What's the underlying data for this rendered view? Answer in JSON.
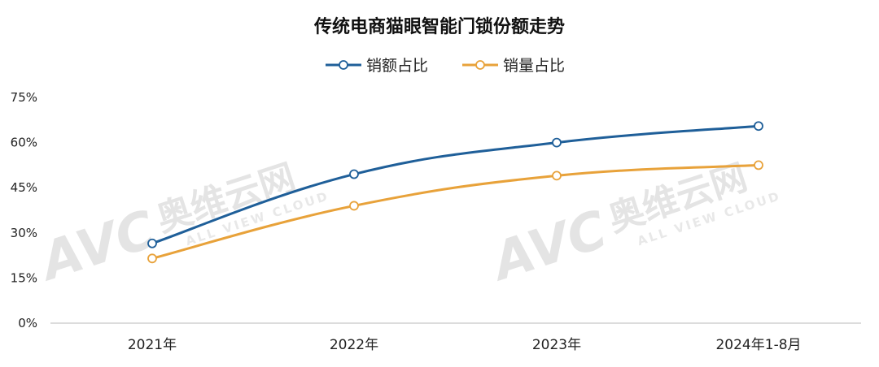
{
  "chart_data": {
    "type": "line",
    "title": "传统电商猫眼智能门锁份额走势",
    "categories": [
      "2021年",
      "2022年",
      "2023年",
      "2024年1-8月"
    ],
    "y_ticks": [
      "0%",
      "15%",
      "30%",
      "45%",
      "60%",
      "75%"
    ],
    "ylim": [
      0,
      75
    ],
    "grid": false,
    "legend_position": "top-center",
    "series": [
      {
        "name": "销额占比",
        "color": "#1f5f99",
        "values": [
          26.5,
          49.5,
          60,
          65.5
        ]
      },
      {
        "name": "销量占比",
        "color": "#e8a23a",
        "values": [
          21.5,
          39,
          49,
          52.5
        ]
      }
    ]
  },
  "watermark": {
    "logo": "AVC",
    "brand": "奥维云网",
    "sub": "ALL VIEW CLOUD"
  }
}
